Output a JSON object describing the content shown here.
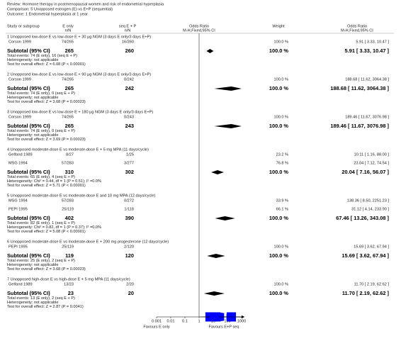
{
  "chart_data": {
    "type": "forest",
    "review": "Review:  Hormone therapy in postmenopausal women and risk of endometrial hyperplasia",
    "comparison": "Comparison:  5 Unopposed estrogen (E) vs E+P (sequential)",
    "outcome": "Outcome:  1 Endometrial hyperplasia at 1 year",
    "columns": {
      "study": "Study or subgroup",
      "group1": [
        "E only",
        "n/N"
      ],
      "group2": [
        "seq E + P",
        "n/N"
      ],
      "plot": [
        "Odds Ratio",
        "M-H,Fixed,95% CI"
      ],
      "weight": "Weight",
      "effect": [
        "Odds Ratio",
        "M-H,Fixed,95% CI"
      ]
    },
    "xscale": "log",
    "xlim": [
      0.001,
      1000
    ],
    "xticks": [
      0.001,
      0.01,
      0.1,
      1,
      10,
      100,
      1000
    ],
    "x_label_left": "Favours E only",
    "x_label_right": "Favours E+P seq",
    "square_color": "#0000ff",
    "diamond_color": "#000000",
    "subgroups": [
      {
        "title": "1 Unopposed low-dose E vs low-dose E + 30 µg NGM (3 days E only/3 days E+P)",
        "studies": [
          {
            "name": "Corson 1999",
            "e_only": "74/265",
            "seq": "16/260",
            "weight": 100.0,
            "weight_label": "100.0 %",
            "or": 5.91,
            "ci": [
              3.33,
              10.47
            ],
            "or_label": "5.91 [ 3.33, 10.47 ]"
          }
        ],
        "subtotal": {
          "label": "Subtotal (95% CI)",
          "e_only_n": 265,
          "seq_n": 260,
          "weight_label": "100.0 %",
          "or": 5.91,
          "ci": [
            3.33,
            10.47
          ],
          "or_label": "5.91 [ 3.33, 10.47 ]"
        },
        "total_events": "Total events: 74 (E only), 16 (seq E + P)",
        "heterogeneity": "Heterogeneity: not applicable",
        "test": "Test for overall effect: Z = 6.08 (P < 0.00001)"
      },
      {
        "title": "2 Unopposed low-dose E vs low-dose E + 90 µg NGM (3 days E only/3 days E+P)",
        "studies": [
          {
            "name": "Corson 1999",
            "e_only": "74/265",
            "seq": "0/242",
            "weight": 100.0,
            "weight_label": "100.0 %",
            "or": 188.68,
            "ci": [
              11.62,
              3064.38
            ],
            "or_label": "188.68 [ 11.62, 3064.38 ]"
          }
        ],
        "subtotal": {
          "label": "Subtotal (95% CI)",
          "e_only_n": 265,
          "seq_n": 242,
          "weight_label": "100.0 %",
          "or": 188.68,
          "ci": [
            11.62,
            3064.38
          ],
          "or_label": "188.68 [ 11.62, 3064.38 ]"
        },
        "total_events": "Total events: 74 (E only), 0 (seq E + P)",
        "heterogeneity": "Heterogeneity: not applicable",
        "test": "Test for overall effect: Z = 3.68 (P = 0.00023)"
      },
      {
        "title": "3 Unopposed low-dose E vs low-dose E + 180 µg NGM (3 days E only/3 days E+P)",
        "studies": [
          {
            "name": "Corson 1999",
            "e_only": "74/265",
            "seq": "0/243",
            "weight": 100.0,
            "weight_label": "100.0 %",
            "or": 189.46,
            "ci": [
              11.67,
              3076.98
            ],
            "or_label": "189.46 [ 11.67, 3076.98 ]"
          }
        ],
        "subtotal": {
          "label": "Subtotal (95% CI)",
          "e_only_n": 265,
          "seq_n": 243,
          "weight_label": "100.0 %",
          "or": 189.46,
          "ci": [
            11.67,
            3076.98
          ],
          "or_label": "189.46 [ 11.67, 3076.98 ]"
        },
        "total_events": "Total events: 74 (E only), 0 (seq E + P)",
        "heterogeneity": "Heterogeneity: not applicable",
        "test": "Test for overall effect: Z = 3.69 (P = 0.00023)"
      },
      {
        "title": "4 Unopposed moderate-dose E vs moderate-dose E + 5 mg MPA (11 days/cycle)",
        "studies": [
          {
            "name": "Gelfand 1989",
            "e_only": "8/27",
            "seq": "1/25",
            "weight": 23.2,
            "weight_label": "23.2 %",
            "or": 10.11,
            "ci": [
              1.16,
              88.0
            ],
            "or_label": "10.11 [ 1.16, 88.00 ]"
          },
          {
            "name": "MSG 1994",
            "e_only": "57/283",
            "seq": "3/277",
            "weight": 76.8,
            "weight_label": "76.8 %",
            "or": 23.04,
            "ci": [
              7.12,
              74.54
            ],
            "or_label": "23.04 [ 7.12, 74.54 ]"
          }
        ],
        "subtotal": {
          "label": "Subtotal (95% CI)",
          "e_only_n": 310,
          "seq_n": 302,
          "weight_label": "100.0 %",
          "or": 20.04,
          "ci": [
            7.16,
            56.07
          ],
          "or_label": "20.04 [ 7.16, 56.07 ]"
        },
        "total_events": "Total events: 65 (E only), 4 (seq E + P)",
        "heterogeneity": "Heterogeneity: Chi² = 0.44, df = 1 (P = 0.51); I² =0.0%",
        "test": "Test for overall effect: Z = 5.71 (P < 0.00001)"
      },
      {
        "title": "5 Unopposed moderate-dose E vs moderate-dose E and 10 mg MPA (12 days/cycle)",
        "studies": [
          {
            "name": "MSG 1994",
            "e_only": "57/283",
            "seq": "0/272",
            "weight": 33.9,
            "weight_label": "33.9 %",
            "or": 138.36,
            "ci": [
              8.5,
              2251.23
            ],
            "or_label": "138.36 [ 8.50, 2251.23 ]"
          },
          {
            "name": "PEPI 1995",
            "e_only": "25/119",
            "seq": "1/118",
            "weight": 66.1,
            "weight_label": "66.1 %",
            "or": 31.12,
            "ci": [
              4.14,
              233.9
            ],
            "or_label": "31.12 [ 4.14, 233.90 ]"
          }
        ],
        "subtotal": {
          "label": "Subtotal (95% CI)",
          "e_only_n": 402,
          "seq_n": 390,
          "weight_label": "100.0 %",
          "or": 67.46,
          "ci": [
            13.26,
            343.08
          ],
          "or_label": "67.46 [ 13.26, 343.08 ]"
        },
        "total_events": "Total events: 82 (E only), 1 (seq E + P)",
        "heterogeneity": "Heterogeneity: Chi² = 0.82, df = 1 (P = 0.37); I² =0.0%",
        "test": "Test for overall effect: Z = 5.08 (P < 0.00001)"
      },
      {
        "title": "6 Unopposed moderate-dose E vs moderate-dose E + 200 mg progesterone (12 days/cycle)",
        "studies": [
          {
            "name": "PEPI 1995",
            "e_only": "25/119",
            "seq": "2/120",
            "weight": 100.0,
            "weight_label": "100.0 %",
            "or": 15.69,
            "ci": [
              3.62,
              67.94
            ],
            "or_label": "15.69 [ 3.62, 67.94 ]"
          }
        ],
        "subtotal": {
          "label": "Subtotal (95% CI)",
          "e_only_n": 119,
          "seq_n": 120,
          "weight_label": "100.0 %",
          "or": 15.69,
          "ci": [
            3.62,
            67.94
          ],
          "or_label": "15.69 [ 3.62, 67.94 ]"
        },
        "total_events": "Total events: 25 (E only), 2 (seq E + P)",
        "heterogeneity": "Heterogeneity: not applicable",
        "test": "Test for overall effect: Z = 3.68 (P = 0.00023)"
      },
      {
        "title": "7 Unopposed high-dose E vs high-dose E + 5 mg MPA (11 days/cycle)",
        "studies": [
          {
            "name": "Gelfand 1989",
            "e_only": "13/23",
            "seq": "2/20",
            "weight": 100.0,
            "weight_label": "100.0 %",
            "or": 11.7,
            "ci": [
              2.19,
              62.62
            ],
            "or_label": "11.70 [ 2.19, 62.62 ]"
          }
        ],
        "subtotal": {
          "label": "Subtotal (95% CI)",
          "e_only_n": 23,
          "seq_n": 20,
          "weight_label": "100.0 %",
          "or": 11.7,
          "ci": [
            2.19,
            62.62
          ],
          "or_label": "11.70 [ 2.19, 62.62 ]"
        },
        "total_events": "Total events: 13 (E only), 2 (seq E + P)",
        "heterogeneity": "Heterogeneity: not applicable",
        "test": "Test for overall effect: Z = 2.87 (P = 0.0041)"
      }
    ]
  }
}
